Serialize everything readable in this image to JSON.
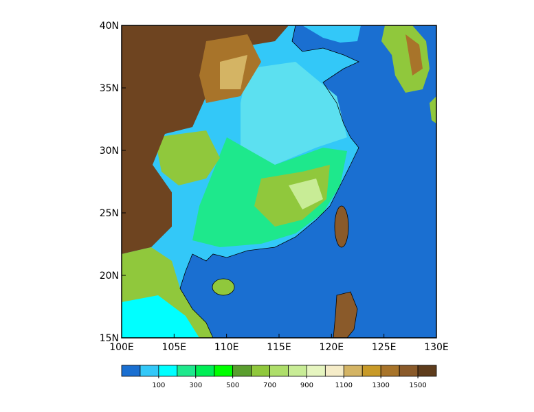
{
  "map": {
    "xlim": [
      100,
      130
    ],
    "ylim": [
      15,
      40
    ],
    "xticks": [
      {
        "value": 100,
        "label": "100E"
      },
      {
        "value": 105,
        "label": "105E"
      },
      {
        "value": 110,
        "label": "110E"
      },
      {
        "value": 115,
        "label": "115E"
      },
      {
        "value": 120,
        "label": "120E"
      },
      {
        "value": 125,
        "label": "125E"
      },
      {
        "value": 130,
        "label": "130E"
      }
    ],
    "yticks": [
      {
        "value": 15,
        "label": "15N"
      },
      {
        "value": 20,
        "label": "20N"
      },
      {
        "value": 25,
        "label": "25N"
      },
      {
        "value": 30,
        "label": "30N"
      },
      {
        "value": 35,
        "label": "35N"
      },
      {
        "value": 40,
        "label": "40N"
      }
    ]
  },
  "colorbar": {
    "range": [
      -100,
      1600
    ],
    "ticks": [
      100,
      300,
      500,
      700,
      900,
      1100,
      1300,
      1500
    ],
    "colors": [
      "#1a6fd1",
      "#33c8f8",
      "#00ffff",
      "#1ee88c",
      "#00ee55",
      "#00ff00",
      "#5a9e2e",
      "#90c83c",
      "#aede6a",
      "#c8ec96",
      "#e6f5c0",
      "#f5ecc8",
      "#d4b464",
      "#c89a28",
      "#a8742a",
      "#8a5a2a",
      "#5e3c1c"
    ]
  }
}
